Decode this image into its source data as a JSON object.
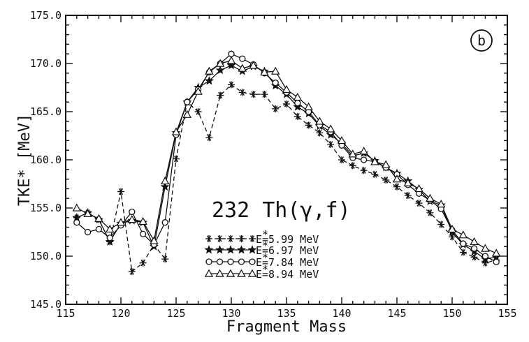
{
  "chart_data": {
    "type": "line",
    "panel_label": "b",
    "annotation": "232 Th(γ,f)",
    "xlabel": "Fragment Mass",
    "ylabel": "TKE* [MeV]",
    "xlim": [
      115,
      155
    ],
    "ylim": [
      145.0,
      175.0
    ],
    "x_ticks": [
      115,
      120,
      125,
      130,
      135,
      140,
      145,
      150,
      155
    ],
    "x_tick_labels": [
      "115",
      "120",
      "125",
      "130",
      "135",
      "140",
      "145",
      "150",
      "155"
    ],
    "y_ticks": [
      145,
      150,
      155,
      160,
      165,
      170,
      175
    ],
    "y_tick_labels": [
      "145.0",
      "150.0",
      "155.0",
      "160.0",
      "165.0",
      "170.0",
      "175.0"
    ],
    "grid": false,
    "legend_position": "bottom-center",
    "x": [
      116,
      117,
      118,
      119,
      120,
      121,
      122,
      123,
      124,
      125,
      126,
      127,
      128,
      129,
      130,
      131,
      132,
      133,
      134,
      135,
      136,
      137,
      138,
      139,
      140,
      141,
      142,
      143,
      144,
      145,
      146,
      147,
      148,
      149,
      150,
      151,
      152,
      153,
      154
    ],
    "series": [
      {
        "name": "E* =5.99  MeV",
        "marker": "asterisk",
        "line": "dashed",
        "values": [
          154.0,
          154.5,
          153.8,
          151.5,
          156.7,
          148.4,
          149.3,
          151.2,
          149.7,
          160.1,
          166.0,
          165.0,
          162.3,
          166.7,
          167.8,
          167.0,
          166.8,
          166.8,
          165.3,
          165.8,
          164.5,
          163.6,
          162.8,
          161.6,
          160.0,
          159.4,
          158.9,
          158.5,
          157.9,
          157.2,
          156.3,
          155.5,
          154.5,
          153.3,
          152.0,
          150.4,
          149.9,
          149.3,
          149.6
        ]
      },
      {
        "name": "E* =6.97  MeV",
        "marker": "star",
        "line": "solid",
        "values": [
          154.0,
          154.5,
          153.8,
          151.5,
          153.4,
          153.7,
          153.5,
          151.0,
          157.2,
          162.8,
          166.0,
          167.5,
          168.2,
          169.3,
          169.8,
          169.2,
          169.7,
          169.2,
          167.7,
          166.8,
          165.5,
          164.8,
          163.5,
          162.6,
          161.7,
          160.4,
          160.7,
          159.9,
          159.2,
          158.6,
          157.8,
          156.9,
          155.7,
          155.3,
          152.5,
          151.2,
          150.5,
          149.7,
          149.9
        ]
      },
      {
        "name": "E* =7.84  MeV",
        "marker": "circle",
        "line": "solid",
        "values": [
          153.5,
          152.5,
          152.8,
          151.9,
          153.2,
          154.6,
          152.3,
          151.2,
          153.5,
          162.6,
          166.0,
          167.3,
          169.1,
          170.0,
          171.0,
          170.5,
          169.9,
          169.0,
          168.0,
          167.0,
          165.9,
          165.0,
          163.6,
          162.9,
          161.5,
          160.2,
          160.0,
          159.8,
          159.2,
          158.5,
          157.4,
          156.5,
          155.8,
          154.9,
          152.7,
          151.3,
          150.8,
          150.0,
          149.4
        ]
      },
      {
        "name": "E* =8.94  MeV",
        "marker": "triangle",
        "line": "solid",
        "values": [
          155.0,
          154.4,
          153.9,
          152.8,
          153.5,
          153.8,
          153.6,
          151.6,
          157.8,
          162.9,
          164.7,
          167.1,
          169.2,
          170.0,
          170.3,
          169.5,
          169.8,
          169.1,
          169.2,
          167.3,
          166.5,
          165.5,
          164.0,
          163.2,
          162.0,
          160.6,
          160.9,
          159.8,
          159.5,
          158.0,
          157.6,
          157.0,
          156.0,
          155.4,
          152.8,
          152.2,
          151.5,
          150.8,
          150.3
        ]
      }
    ],
    "legend": [
      {
        "prefix": "E",
        "star": "*",
        "suffix": "=5.99  MeV"
      },
      {
        "prefix": "E",
        "star": "*",
        "suffix": "=6.97  MeV"
      },
      {
        "prefix": "E",
        "star": "*",
        "suffix": "=7.84  MeV"
      },
      {
        "prefix": "E",
        "star": "*",
        "suffix": "=8.94  MeV"
      }
    ]
  }
}
